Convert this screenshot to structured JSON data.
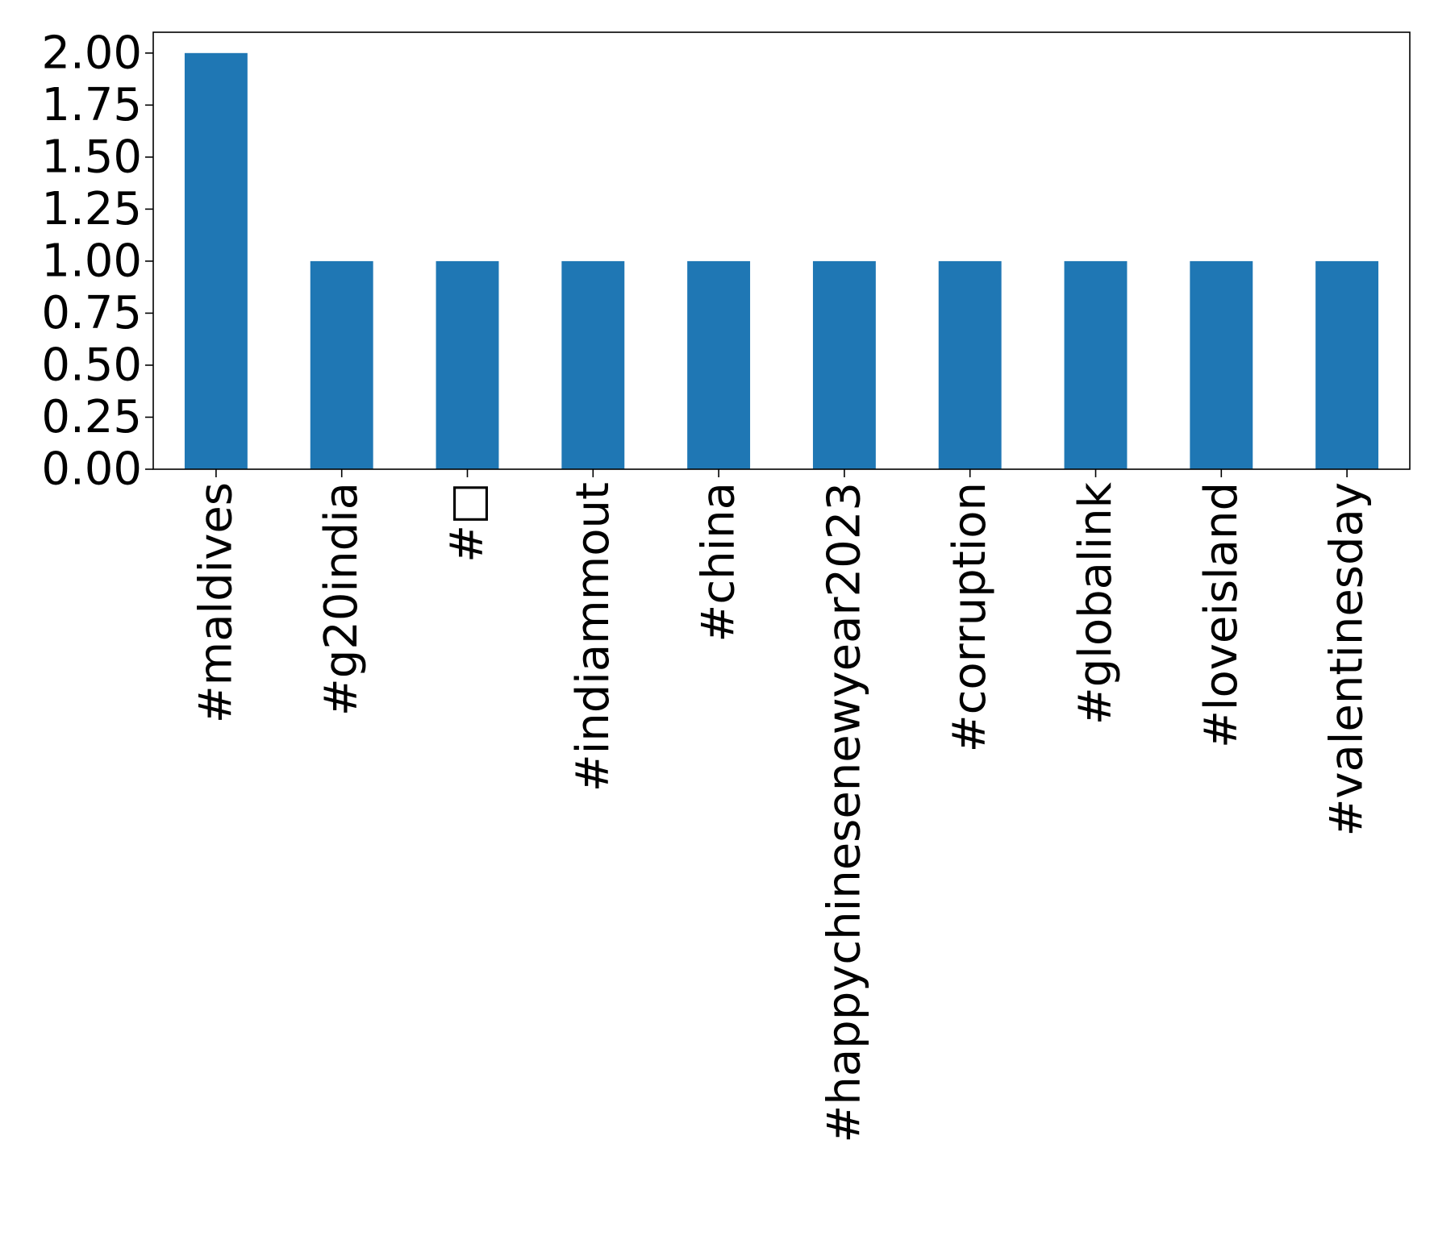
{
  "chart_data": {
    "type": "bar",
    "categories": [
      "#maldives",
      "#g20india",
      "#□",
      "#indiammout",
      "#china",
      "#happychinesenewyear2023",
      "#corruption",
      "#globalink",
      "#loveisland",
      "#valentinesday"
    ],
    "values": [
      2,
      1,
      1,
      1,
      1,
      1,
      1,
      1,
      1,
      1
    ],
    "title": "",
    "xlabel": "",
    "ylabel": "",
    "ylim": [
      0,
      2.1
    ],
    "yticks": [
      "0.00",
      "0.25",
      "0.50",
      "0.75",
      "1.00",
      "1.25",
      "1.50",
      "1.75",
      "2.00"
    ],
    "grid": false,
    "bar_color": "#1f77b4"
  }
}
